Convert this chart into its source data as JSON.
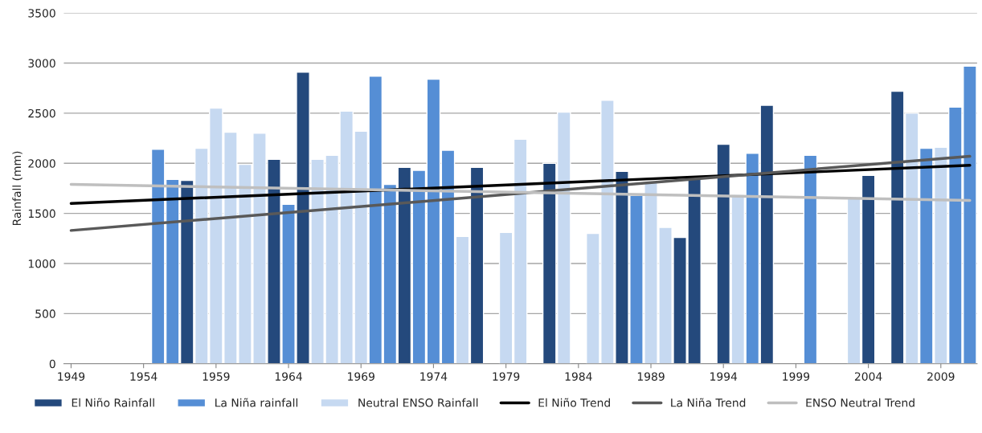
{
  "chart_data": {
    "type": "bar",
    "ylabel": "Rainfall (mm)",
    "series": [
      {
        "name": "El Niño Rainfall",
        "color": "#24497c",
        "x": [
          1957,
          1963,
          1965,
          1972,
          1977,
          1982,
          1987,
          1991,
          1992,
          1994,
          1997,
          2004,
          2006
        ],
        "values": [
          1830,
          2040,
          2910,
          1960,
          1960,
          2000,
          1920,
          1260,
          1840,
          2190,
          2580,
          1880,
          2720
        ]
      },
      {
        "name": "La Niña rainfall",
        "color": "#558ed5",
        "x": [
          1955,
          1956,
          1964,
          1970,
          1971,
          1973,
          1974,
          1975,
          1988,
          1996,
          2000,
          2008,
          2010,
          2011
        ],
        "values": [
          2140,
          1840,
          1590,
          2870,
          1790,
          1930,
          2840,
          2130,
          1680,
          2100,
          2080,
          2150,
          2560,
          2970
        ]
      },
      {
        "name": "Neutral ENSO Rainfall",
        "color": "#c6d9f1",
        "x": [
          1958,
          1959,
          1960,
          1961,
          1962,
          1966,
          1967,
          1968,
          1969,
          1976,
          1979,
          1980,
          1983,
          1985,
          1986,
          1989,
          1990,
          1995,
          2003,
          2007,
          2009
        ],
        "values": [
          2150,
          2550,
          2310,
          1990,
          2300,
          2040,
          2080,
          2520,
          2320,
          1270,
          1310,
          2240,
          2510,
          1300,
          2630,
          1810,
          1360,
          1690,
          1650,
          2500,
          2160
        ]
      },
      {
        "name": "El Niño Trend",
        "type": "line",
        "color": "#000000",
        "x": [
          1949,
          2011
        ],
        "values": [
          1600,
          1980
        ]
      },
      {
        "name": "La Niña Trend",
        "type": "line",
        "color": "#595959",
        "x": [
          1949,
          2011
        ],
        "values": [
          1330,
          2070
        ]
      },
      {
        "name": "ENSO Neutral Trend",
        "type": "line",
        "color": "#bfbfbf",
        "x": [
          1949,
          2011
        ],
        "values": [
          1790,
          1630
        ]
      }
    ],
    "xlim": [
      1948.5,
      2011.5
    ],
    "xticks": [
      1949,
      1954,
      1959,
      1964,
      1969,
      1974,
      1979,
      1984,
      1989,
      1994,
      1999,
      2004,
      2009
    ],
    "ylim": [
      0,
      3500
    ],
    "yticks": [
      0,
      500,
      1000,
      1500,
      2000,
      2500,
      3000,
      3500
    ],
    "grid": "y",
    "legend": "bottom",
    "marker": "none",
    "line_style": "solid"
  }
}
